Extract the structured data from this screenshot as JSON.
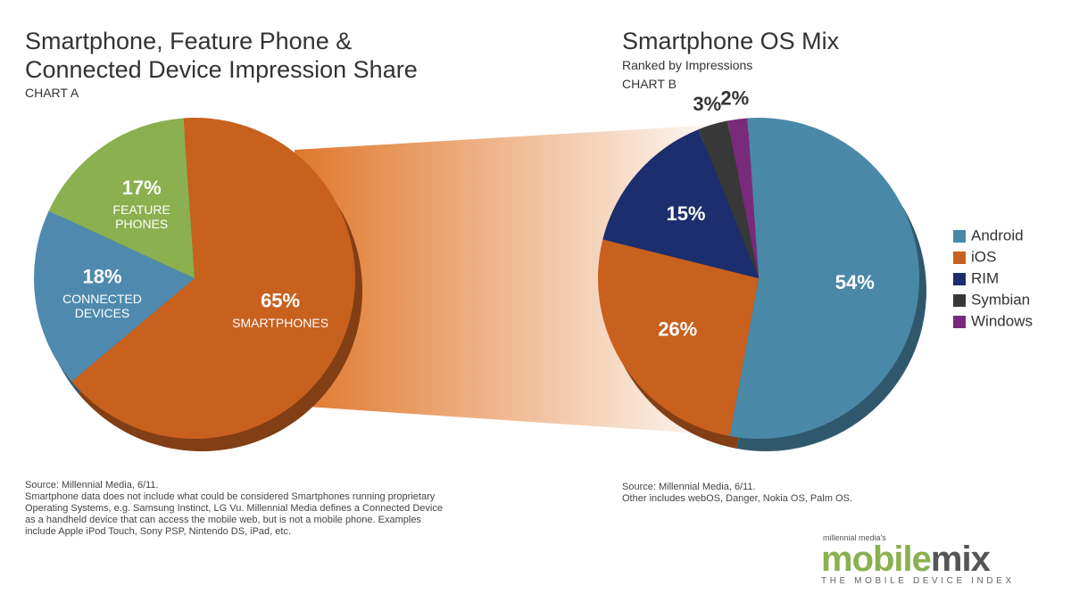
{
  "chart_data": [
    {
      "type": "pie",
      "title": "Smartphone, Feature Phone & Connected Device Impression Share",
      "chart_label": "CHART A",
      "categories": [
        "SMARTPHONES",
        "CONNECTED DEVICES",
        "FEATURE PHONES"
      ],
      "values": [
        65,
        18,
        17
      ],
      "value_labels": [
        "65%",
        "18%",
        "17%"
      ],
      "colors": [
        "#c8601e",
        "#4f8aae",
        "#8ab04f"
      ],
      "legend": false,
      "source": "Source: Millennial Media, 6/11.",
      "note": "Smartphone data does not include what could be considered Smartphones running proprietary Operating Systems, e.g. Samsung Instinct, LG Vu. Millennial Media defines a Connected Device as a handheld device that can access the mobile web, but is not a mobile phone. Examples include Apple iPod Touch, Sony PSP, Nintendo DS, iPad, etc."
    },
    {
      "type": "pie",
      "title": "Smartphone OS Mix",
      "subtitle": "Ranked by Impressions",
      "chart_label": "CHART B",
      "categories": [
        "Android",
        "iOS",
        "RIM",
        "Symbian",
        "Windows"
      ],
      "values": [
        54,
        26,
        15,
        3,
        2
      ],
      "value_labels": [
        "54%",
        "26%",
        "15%",
        "3%",
        "2%"
      ],
      "colors": [
        "#4a88a8",
        "#c8601e",
        "#1c2e6e",
        "#383838",
        "#7a2a7a"
      ],
      "legend": "right",
      "source": "Source: Millennial Media, 6/11.",
      "note": "Other includes webOS, Danger, Nokia OS, Palm OS."
    }
  ],
  "logo": {
    "kicker": "millennial media's",
    "name_first": "mobile",
    "name_second": "mix",
    "tagline": "THE MOBILE DEVICE INDEX"
  }
}
